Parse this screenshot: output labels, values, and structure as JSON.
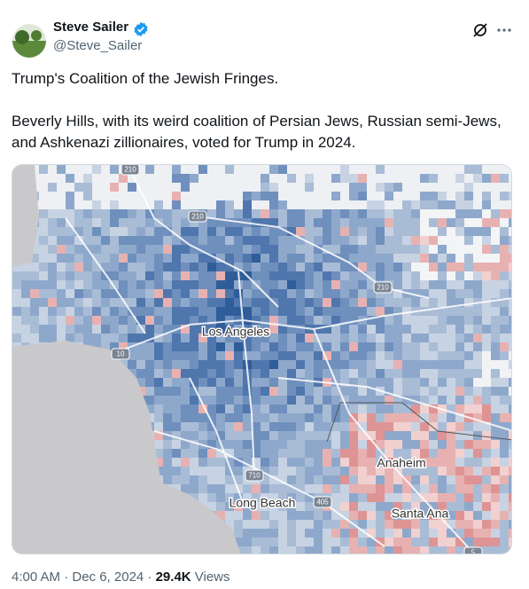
{
  "author": {
    "name": "Steve Sailer",
    "handle": "@Steve_Sailer"
  },
  "text": [
    "Trump's Coalition of the Jewish Fringes.",
    "Beverly Hills, with its weird coalition of Persian Jews, Russian semi-Jews, and Ashkenazi zillionaires, voted for Trump in 2024."
  ],
  "map": {
    "labels": [
      "Los Angeles",
      "Anaheim",
      "Long Beach",
      "Santa Ana"
    ],
    "highways": [
      "210",
      "210",
      "210",
      "10",
      "710",
      "405",
      "5"
    ]
  },
  "footer": {
    "timestamp": "4:00 AM · Dec 6, 2024 ·",
    "views_count": "29.4K",
    "views_label": "Views"
  }
}
